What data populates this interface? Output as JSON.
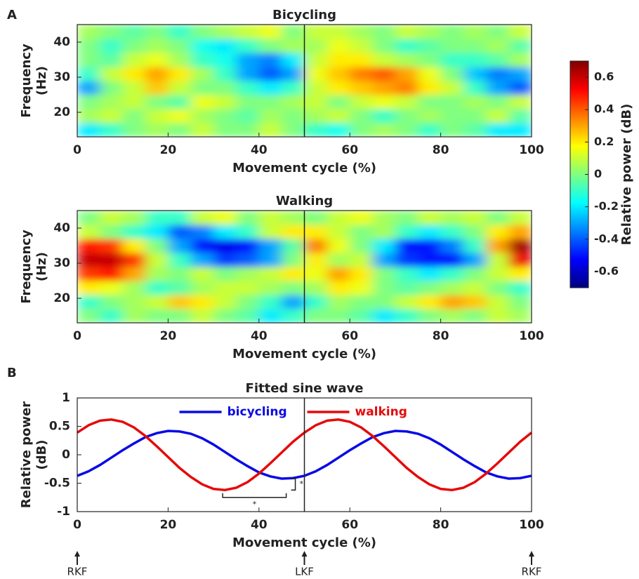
{
  "colorbar": {
    "clim": [
      -0.7,
      0.7
    ],
    "ticks": [
      -0.6,
      -0.4,
      -0.2,
      0,
      0.2,
      0.4,
      0.6
    ],
    "label": "Relative power (dB)",
    "colormap": "jet"
  },
  "chart_data": [
    {
      "type": "heatmap",
      "panel": "A",
      "title": "Bicycling",
      "xlabel": "Movement cycle (%)",
      "ylabel": [
        "Frequency",
        "(Hz)"
      ],
      "xlim": [
        0,
        100
      ],
      "xticks": [
        0,
        20,
        40,
        60,
        80,
        100
      ],
      "ylim": [
        13,
        45
      ],
      "yticks": [
        20,
        30,
        40
      ],
      "vline": 50,
      "z": [
        [
          -0.2,
          -0.1,
          0,
          0.05,
          0,
          0.1,
          0,
          0,
          0.1,
          0,
          -0.1,
          -0.15,
          0,
          0.05,
          0,
          -0.1,
          0,
          -0.05,
          -0.2,
          -0.2
        ],
        [
          0.05,
          0.1,
          0,
          0.1,
          0.15,
          0.05,
          0,
          -0.05,
          0.05,
          0,
          0.05,
          0.1,
          0,
          -0.1,
          0,
          0.05,
          0,
          0,
          0.1,
          -0.05
        ],
        [
          0,
          0.05,
          0.1,
          0,
          -0.05,
          0.15,
          0.1,
          0,
          0,
          0.05,
          0.1,
          0,
          0.1,
          0.15,
          0.1,
          0,
          0,
          0.05,
          0,
          0.1
        ],
        [
          -0.3,
          0,
          0.1,
          0.25,
          0.1,
          0,
          0,
          -0.1,
          -0.2,
          -0.1,
          0.1,
          0.2,
          0.25,
          0.3,
          0.35,
          0.2,
          0.1,
          -0.1,
          -0.3,
          -0.4
        ],
        [
          -0.1,
          0.1,
          0.2,
          0.3,
          0.2,
          0.05,
          -0.1,
          -0.3,
          -0.4,
          -0.3,
          0.15,
          0.25,
          0.35,
          0.4,
          0.3,
          0.15,
          0,
          -0.25,
          -0.35,
          -0.3
        ],
        [
          0,
          -0.05,
          0.1,
          0.15,
          0.05,
          -0.1,
          -0.15,
          -0.3,
          -0.35,
          -0.2,
          0.1,
          0.2,
          0.2,
          0.1,
          0.05,
          0,
          -0.1,
          -0.1,
          -0.05,
          0.05
        ],
        [
          0,
          -0.1,
          0,
          0.05,
          0,
          -0.15,
          -0.2,
          -0.1,
          0,
          0.05,
          0.05,
          0.15,
          0.1,
          0,
          -0.1,
          -0.05,
          0,
          0,
          0.05,
          -0.05
        ],
        [
          0.05,
          0,
          -0.05,
          0,
          -0.1,
          0,
          0.05,
          0.1,
          0.15,
          0,
          0.1,
          0.1,
          0.05,
          0,
          0.1,
          0.05,
          0,
          0.05,
          0,
          0.1
        ]
      ]
    },
    {
      "type": "heatmap",
      "title": "Walking",
      "xlabel": "Movement cycle (%)",
      "ylabel": [
        "Frequency",
        "(Hz)"
      ],
      "xlim": [
        0,
        100
      ],
      "xticks": [
        0,
        20,
        40,
        60,
        80,
        100
      ],
      "ylim": [
        13,
        45
      ],
      "yticks": [
        20,
        30,
        40
      ],
      "vline": 50,
      "z": [
        [
          0,
          -0.1,
          0.05,
          0,
          0,
          0.1,
          0,
          -0.05,
          -0.2,
          -0.1,
          0,
          0,
          -0.05,
          -0.2,
          -0.1,
          0,
          0.05,
          0,
          0.1,
          0.05
        ],
        [
          -0.1,
          0,
          0.05,
          0.1,
          0.25,
          0.2,
          0.1,
          0,
          -0.1,
          -0.3,
          -0.1,
          0.05,
          0,
          0,
          0.1,
          0.2,
          0.3,
          0.25,
          0.1,
          0
        ],
        [
          0.2,
          0.15,
          0.05,
          -0.1,
          -0.05,
          0.05,
          0.1,
          0.1,
          0.05,
          0,
          0.05,
          0.2,
          0.15,
          0,
          -0.05,
          0,
          0.05,
          0.1,
          0,
          -0.1
        ],
        [
          0.45,
          0.5,
          0.3,
          0.05,
          0,
          0.1,
          0,
          0.05,
          0.1,
          0.2,
          0.15,
          0.3,
          0.2,
          0,
          -0.1,
          -0.2,
          -0.1,
          0,
          0.1,
          0.2
        ],
        [
          0.6,
          0.6,
          0.45,
          0.1,
          -0.1,
          -0.3,
          -0.45,
          -0.4,
          -0.3,
          0,
          0.2,
          0.05,
          0.1,
          -0.3,
          -0.45,
          -0.5,
          -0.5,
          -0.3,
          0.1,
          0.55
        ],
        [
          0.5,
          0.45,
          0.2,
          0,
          -0.3,
          -0.5,
          -0.55,
          -0.5,
          -0.3,
          -0.05,
          0.35,
          0.15,
          0,
          -0.2,
          -0.5,
          -0.5,
          -0.35,
          -0.1,
          0.3,
          0.65
        ],
        [
          0.1,
          0,
          -0.1,
          -0.2,
          -0.4,
          -0.35,
          -0.2,
          -0.1,
          0.1,
          0.2,
          0.2,
          0.1,
          0,
          0.05,
          -0.1,
          -0.2,
          -0.1,
          0,
          0.2,
          0.3
        ],
        [
          0,
          0.1,
          0.05,
          -0.1,
          -0.1,
          0.1,
          0.15,
          0,
          0.1,
          0.05,
          0,
          0.1,
          0.15,
          0.05,
          0,
          0.1,
          0.05,
          0.1,
          0,
          0.1
        ]
      ]
    },
    {
      "type": "line",
      "panel": "B",
      "title": "Fitted sine wave",
      "xlabel": "Movement cycle (%)",
      "ylabel": [
        "Relative power",
        "(dB)"
      ],
      "xlim": [
        0,
        100
      ],
      "xticks": [
        0,
        20,
        40,
        60,
        80,
        100
      ],
      "ylim": [
        -1,
        1
      ],
      "yticks": [
        -1,
        -0.5,
        0,
        0.5,
        1
      ],
      "vline": 50,
      "legend": "upper center",
      "x": [
        0,
        2.5,
        5,
        7.5,
        10,
        12.5,
        15,
        17.5,
        20,
        22.5,
        25,
        27.5,
        30,
        32.5,
        35,
        37.5,
        40,
        42.5,
        45,
        47.5,
        50,
        52.5,
        55,
        57.5,
        60,
        62.5,
        65,
        67.5,
        70,
        72.5,
        75,
        77.5,
        80,
        82.5,
        85,
        87.5,
        90,
        92.5,
        95,
        97.5,
        100
      ],
      "series": [
        {
          "name": "bicycling",
          "color": "#0a0ae6",
          "values": [
            -0.37,
            -0.29,
            -0.18,
            -0.05,
            0.08,
            0.2,
            0.31,
            0.38,
            0.42,
            0.41,
            0.37,
            0.29,
            0.18,
            0.05,
            -0.08,
            -0.2,
            -0.31,
            -0.38,
            -0.42,
            -0.41,
            -0.37,
            -0.29,
            -0.18,
            -0.05,
            0.08,
            0.2,
            0.31,
            0.38,
            0.42,
            0.41,
            0.37,
            0.29,
            0.18,
            0.05,
            -0.08,
            -0.2,
            -0.31,
            -0.38,
            -0.42,
            -0.41,
            -0.37
          ]
        },
        {
          "name": "walking",
          "color": "#e60a0a",
          "values": [
            0.39,
            0.52,
            0.6,
            0.62,
            0.58,
            0.48,
            0.33,
            0.15,
            -0.04,
            -0.23,
            -0.39,
            -0.52,
            -0.6,
            -0.62,
            -0.58,
            -0.48,
            -0.33,
            -0.15,
            0.04,
            0.23,
            0.39,
            0.52,
            0.6,
            0.62,
            0.58,
            0.48,
            0.33,
            0.15,
            -0.04,
            -0.23,
            -0.39,
            -0.52,
            -0.6,
            -0.62,
            -0.58,
            -0.48,
            -0.33,
            -0.15,
            0.04,
            0.23,
            0.39
          ]
        }
      ],
      "significance": [
        {
          "x": [
            32,
            46
          ],
          "y": -0.75,
          "label": "*"
        },
        {
          "x": 48,
          "y": [
            -0.62,
            -0.42
          ],
          "label": "*"
        }
      ],
      "events": [
        {
          "x": 0,
          "label": "RKF"
        },
        {
          "x": 50,
          "label": "LKF"
        },
        {
          "x": 100,
          "label": "RKF"
        }
      ]
    }
  ]
}
